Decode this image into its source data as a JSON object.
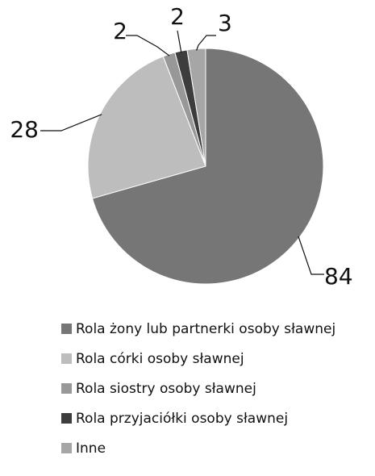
{
  "chart_data": {
    "type": "pie",
    "categories": [
      "Rola żony lub partnerki osoby sławnej",
      "Rola córki osoby sławnej",
      "Rola siostry osoby sławnej",
      "Rola przyjaciółki osoby sławnej",
      "Inne"
    ],
    "values": [
      84,
      28,
      2,
      2,
      3
    ],
    "labels": [
      "84",
      "28",
      "2",
      "2",
      "3"
    ],
    "colors": [
      "#767676",
      "#bdbdbd",
      "#989898",
      "#3d3d3d",
      "#a6a6a6"
    ],
    "title": "",
    "legend_position": "bottom",
    "start_angle_deg": 0,
    "direction": "clockwise"
  }
}
